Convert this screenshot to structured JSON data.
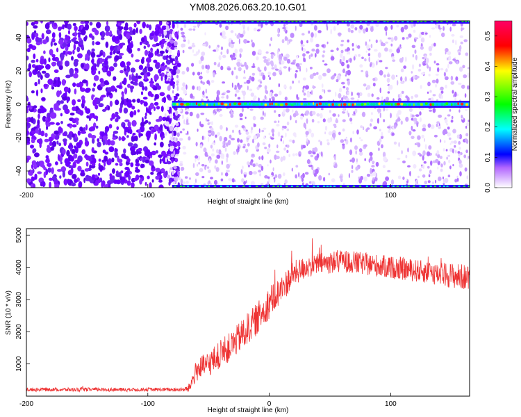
{
  "title": "YM08.2026.063.20.10.G01",
  "chart_data": [
    {
      "type": "heatmap",
      "xlabel": "Height of straight line (km)",
      "ylabel": "Frequency (Hz)",
      "xlim": [
        -200,
        165
      ],
      "ylim": [
        -50,
        50
      ],
      "xticks": [
        -200,
        -100,
        0,
        100
      ],
      "yticks": [
        -40,
        -20,
        0,
        20,
        40
      ],
      "signal_band": {
        "frequency": 0,
        "x_start": -80,
        "x_end": 165
      },
      "low_snr_region": {
        "x_start": -200,
        "x_end": -80
      },
      "colorbar": {
        "label": "Normalized spectral amplitude",
        "range": [
          0.0,
          0.55
        ],
        "ticks": [
          0.0,
          0.1,
          0.2,
          0.3,
          0.4,
          0.5
        ],
        "colors": [
          "#ffffff",
          "#7b00ff",
          "#0000ff",
          "#00ffff",
          "#00ff00",
          "#ffff00",
          "#ff0000",
          "#ff0066"
        ]
      }
    },
    {
      "type": "line",
      "xlabel": "Height of straight line (km)",
      "ylabel": "SNR (10 * v/v)",
      "xlim": [
        -200,
        165
      ],
      "ylim": [
        0,
        5200
      ],
      "xticks": [
        -200,
        -100,
        0,
        100
      ],
      "yticks": [
        1000,
        2000,
        3000,
        4000,
        5000
      ],
      "color": "#ee3333",
      "series": [
        {
          "name": "SNR",
          "x": [
            -200,
            -180,
            -160,
            -140,
            -120,
            -100,
            -80,
            -70,
            -66,
            -60,
            -50,
            -40,
            -30,
            -20,
            -10,
            0,
            10,
            20,
            30,
            40,
            50,
            60,
            70,
            80,
            90,
            100,
            110,
            120,
            130,
            140,
            150,
            160,
            165
          ],
          "values": [
            200,
            210,
            200,
            205,
            200,
            210,
            200,
            200,
            250,
            800,
            1000,
            1300,
            1600,
            2000,
            2400,
            2900,
            3300,
            3800,
            4000,
            4100,
            4150,
            4200,
            4150,
            4100,
            4050,
            4000,
            3950,
            3900,
            3850,
            3800,
            3750,
            3700,
            3650
          ],
          "noise_amplitude": [
            60,
            60,
            60,
            60,
            60,
            60,
            60,
            60,
            150,
            350,
            400,
            450,
            450,
            500,
            500,
            500,
            450,
            400,
            350,
            350,
            350,
            350,
            350,
            350,
            350,
            350,
            350,
            350,
            350,
            350,
            400,
            400,
            400
          ]
        }
      ]
    }
  ]
}
